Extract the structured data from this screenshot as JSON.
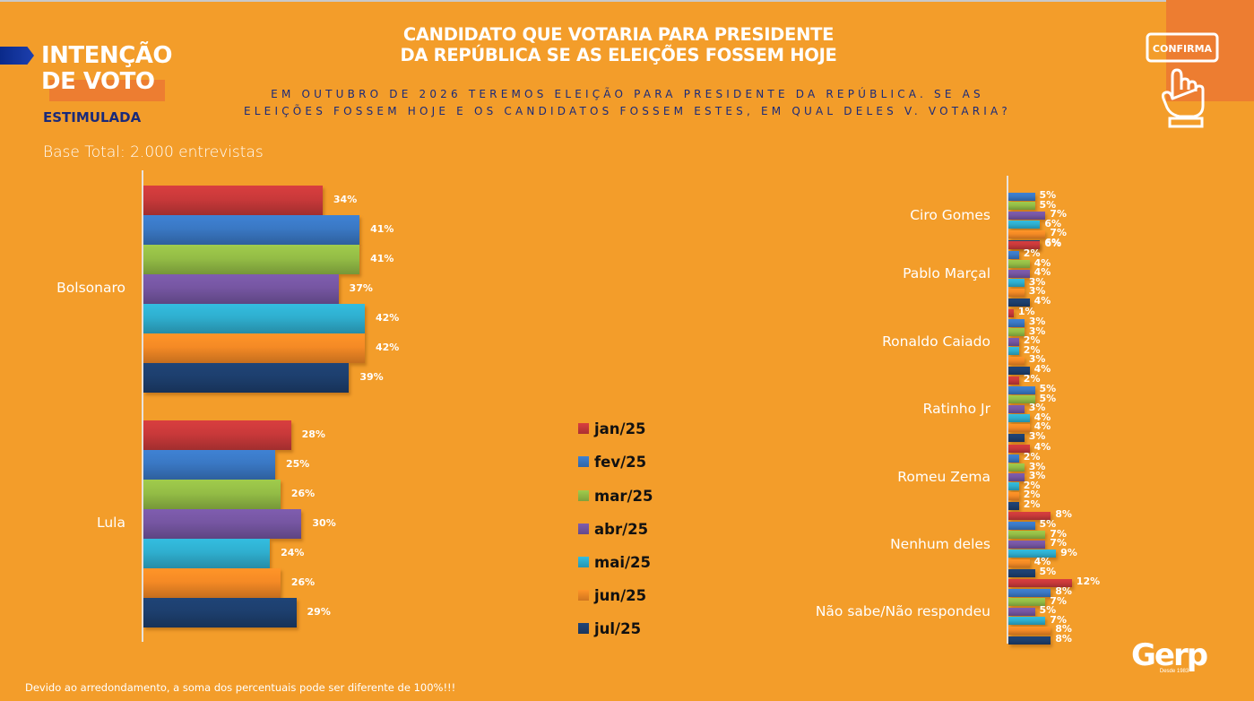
{
  "header": {
    "brand_line1": "INTENÇÃO",
    "brand_line2": "DE VOTO",
    "brand_sub": "ESTIMULADA",
    "base_total": "Base Total: 2.000 entrevistas",
    "title_line1": "CANDIDATO QUE VOTARIA PARA PRESIDENTE",
    "title_line2": "DA REPÚBLICA SE AS ELEIÇÕES FOSSEM HOJE",
    "question_line1": "EM OUTUBRO DE 2026 TEREMOS ELEIÇÃO PARA PRESIDENTE DA REPÚBLICA. SE AS",
    "question_line2": "ELEIÇÕES FOSSEM HOJE E OS CANDIDATOS FOSSEM ESTES, EM QUAL DELES V. VOTARIA?",
    "confirm_icon_label": "CONFIRMA",
    "confirm_icon": "hand-pressing-confirm-button-icon"
  },
  "footer": {
    "footnote": "Devido ao arredondamento, a soma dos percentuais pode ser diferente de 100%!!!",
    "logo_name": "Gerp",
    "logo_since": "Desde 1983"
  },
  "colors": {
    "background": "#F39D2A",
    "accent": "#ED7D31",
    "navy": "#1a2a7a"
  },
  "chart_data": [
    {
      "type": "bar",
      "orientation": "horizontal",
      "title": "",
      "xlabel": "",
      "ylabel": "",
      "grid": false,
      "categories": [
        "Bolsonaro",
        "Lula"
      ],
      "series": [
        {
          "name": "jan/25",
          "color": "#C9393A",
          "values": [
            34,
            28
          ]
        },
        {
          "name": "fev/25",
          "color": "#3A78C4",
          "values": [
            41,
            25
          ]
        },
        {
          "name": "mar/25",
          "color": "#94BD46",
          "values": [
            41,
            26
          ]
        },
        {
          "name": "abr/25",
          "color": "#7656A2",
          "values": [
            37,
            30
          ]
        },
        {
          "name": "mai/25",
          "color": "#2FAFCF",
          "values": [
            42,
            24
          ]
        },
        {
          "name": "jun/25",
          "color": "#F58A25",
          "values": [
            42,
            26
          ]
        },
        {
          "name": "jul/25",
          "color": "#1D3F6E",
          "values": [
            39,
            29
          ]
        }
      ],
      "value_suffix": "%",
      "xlim": [
        0,
        45
      ]
    },
    {
      "type": "bar",
      "orientation": "horizontal",
      "title": "",
      "xlabel": "",
      "ylabel": "",
      "grid": false,
      "categories": [
        "Ciro Gomes",
        "Pablo Marçal",
        "Ronaldo Caiado",
        "Ratinho Jr",
        "Romeu Zema",
        "Nenhum deles",
        "Não sabe/Não respondeu"
      ],
      "series": [
        {
          "name": "jan/25",
          "color": "#C9393A",
          "values": [
            null,
            6,
            1,
            2,
            4,
            8,
            12
          ]
        },
        {
          "name": "fev/25",
          "color": "#3A78C4",
          "values": [
            5,
            2,
            3,
            5,
            2,
            5,
            8
          ]
        },
        {
          "name": "mar/25",
          "color": "#94BD46",
          "values": [
            5,
            4,
            3,
            5,
            3,
            7,
            7
          ]
        },
        {
          "name": "abr/25",
          "color": "#7656A2",
          "values": [
            7,
            4,
            2,
            3,
            3,
            7,
            5
          ]
        },
        {
          "name": "mai/25",
          "color": "#2FAFCF",
          "values": [
            6,
            3,
            2,
            4,
            2,
            9,
            7
          ]
        },
        {
          "name": "jun/25",
          "color": "#F58A25",
          "values": [
            7,
            3,
            3,
            4,
            2,
            4,
            8
          ]
        },
        {
          "name": "jul/25",
          "color": "#1D3F6E",
          "values": [
            6,
            4,
            4,
            3,
            2,
            5,
            8
          ]
        }
      ],
      "value_suffix": "%",
      "xlim": [
        0,
        45
      ]
    }
  ],
  "legend": {
    "placement": "center",
    "items": [
      "jan/25",
      "fev/25",
      "mar/25",
      "abr/25",
      "mai/25",
      "jun/25",
      "jul/25"
    ]
  }
}
